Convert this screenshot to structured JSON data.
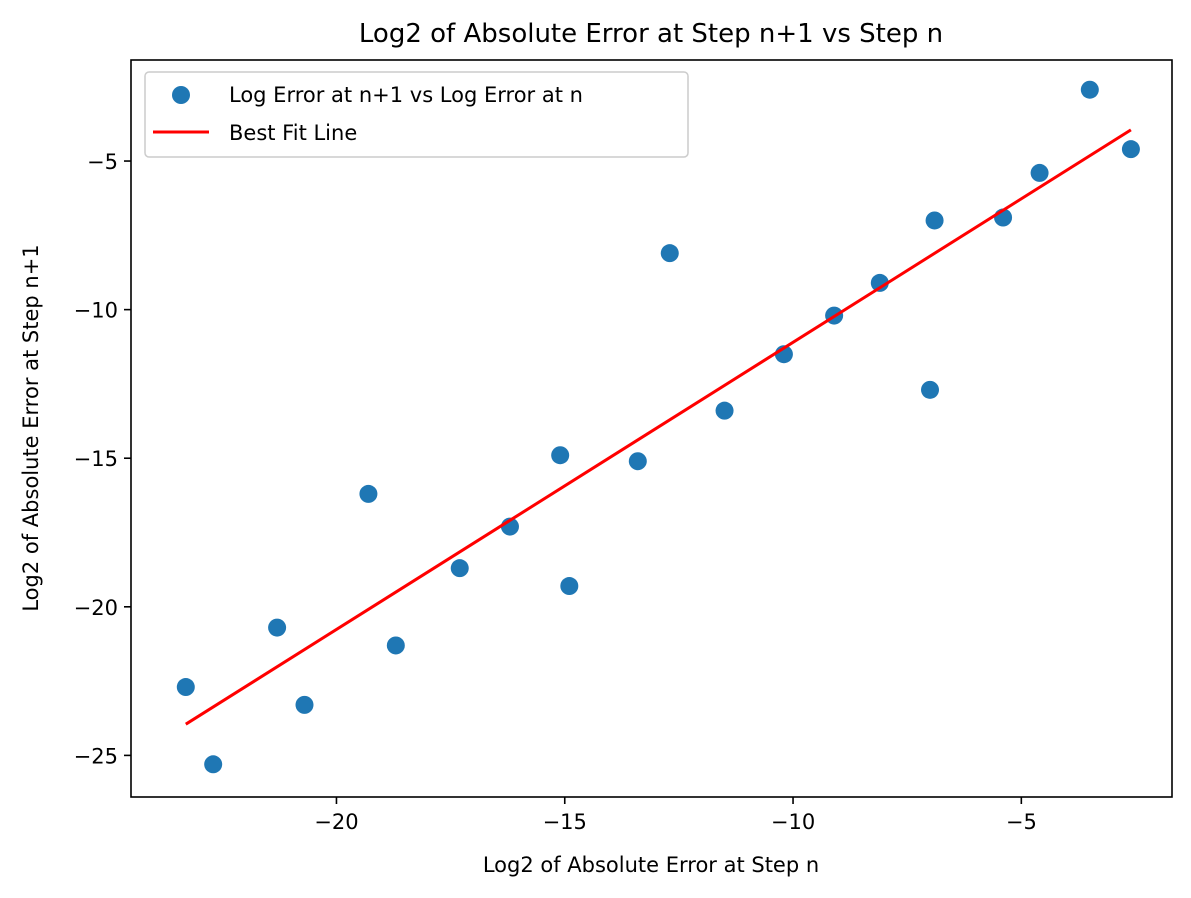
{
  "chart_data": {
    "type": "scatter",
    "title": "Log2 of Absolute Error at Step n+1 vs Step n",
    "xlabel": "Log2 of Absolute Error at Step n",
    "ylabel": "Log2 of Absolute Error at Step n+1",
    "xlim": [
      -24.5,
      -1.7
    ],
    "ylim": [
      -26.4,
      -1.6
    ],
    "xticks": [
      -20,
      -15,
      -10,
      -5
    ],
    "xtick_labels": [
      "−20",
      "−15",
      "−10",
      "−5"
    ],
    "yticks": [
      -25,
      -20,
      -15,
      -10,
      -5
    ],
    "ytick_labels": [
      "−25",
      "−20",
      "−15",
      "−10",
      "−5"
    ],
    "grid": false,
    "legend_position": "top-left",
    "series": [
      {
        "name": "Log Error at n+1 vs Log Error at n",
        "kind": "scatter",
        "color": "#1f77b4",
        "points": [
          {
            "x": -23.3,
            "y": -22.7
          },
          {
            "x": -22.7,
            "y": -25.3
          },
          {
            "x": -21.3,
            "y": -20.7
          },
          {
            "x": -20.7,
            "y": -23.3
          },
          {
            "x": -19.3,
            "y": -16.2
          },
          {
            "x": -18.7,
            "y": -21.3
          },
          {
            "x": -17.3,
            "y": -18.7
          },
          {
            "x": -16.2,
            "y": -17.3
          },
          {
            "x": -15.1,
            "y": -14.9
          },
          {
            "x": -14.9,
            "y": -19.3
          },
          {
            "x": -13.4,
            "y": -15.1
          },
          {
            "x": -12.7,
            "y": -8.1
          },
          {
            "x": -11.5,
            "y": -13.4
          },
          {
            "x": -10.2,
            "y": -11.5
          },
          {
            "x": -9.1,
            "y": -10.2
          },
          {
            "x": -8.1,
            "y": -9.1
          },
          {
            "x": -7.0,
            "y": -12.7
          },
          {
            "x": -6.9,
            "y": -7.0
          },
          {
            "x": -5.4,
            "y": -6.9
          },
          {
            "x": -4.6,
            "y": -5.4
          },
          {
            "x": -3.5,
            "y": -2.6
          },
          {
            "x": -2.6,
            "y": -4.6
          }
        ]
      },
      {
        "name": "Best Fit Line",
        "kind": "line",
        "color": "#ff0000",
        "points": [
          {
            "x": -23.3,
            "y": -23.95
          },
          {
            "x": -2.6,
            "y": -3.95
          }
        ]
      }
    ]
  }
}
